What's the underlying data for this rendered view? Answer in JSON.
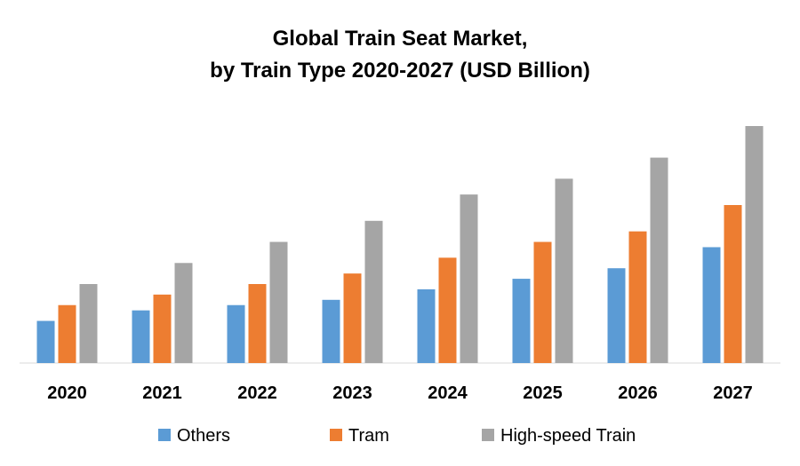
{
  "chart_data": {
    "type": "bar",
    "title_lines": [
      "Global Train Seat Market,",
      "by Train Type 2020-2027 (USD Billion)"
    ],
    "categories": [
      "2020",
      "2021",
      "2022",
      "2023",
      "2024",
      "2025",
      "2026",
      "2027"
    ],
    "series": [
      {
        "name": "Others",
        "color": "#5b9bd5",
        "values": [
          0.8,
          1.0,
          1.1,
          1.2,
          1.4,
          1.6,
          1.8,
          2.2
        ]
      },
      {
        "name": "Tram",
        "color": "#ed7d31",
        "values": [
          1.1,
          1.3,
          1.5,
          1.7,
          2.0,
          2.3,
          2.5,
          3.0
        ]
      },
      {
        "name": "High-speed Train",
        "color": "#a5a5a5",
        "values": [
          1.5,
          1.9,
          2.3,
          2.7,
          3.2,
          3.5,
          3.9,
          4.5
        ]
      }
    ],
    "xlabel": "",
    "ylabel": "",
    "ylim": [
      0,
      4.5
    ],
    "grid": false,
    "legend": "bottom"
  }
}
